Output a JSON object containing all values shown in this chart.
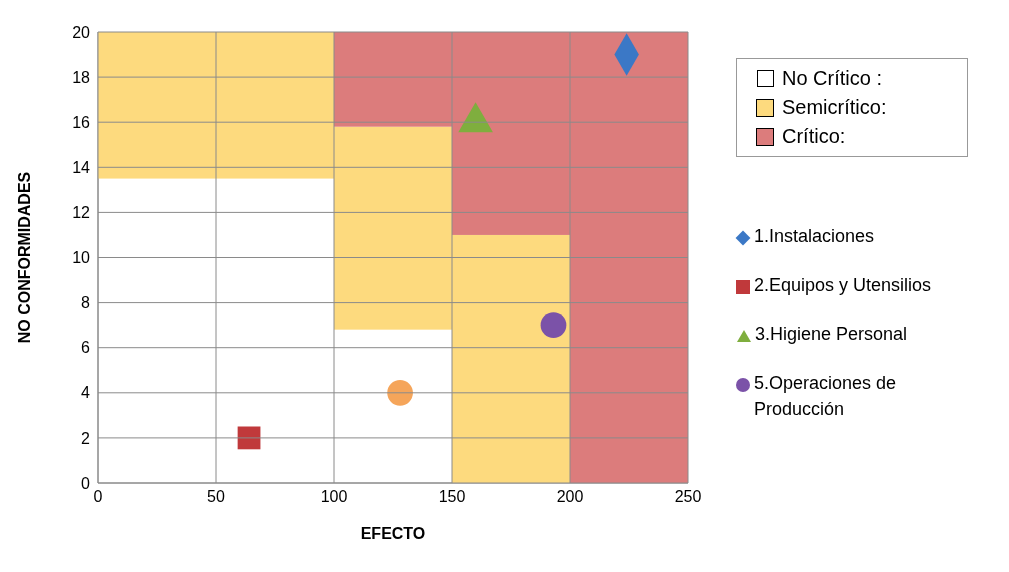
{
  "chart_data": {
    "type": "scatter",
    "xlabel": "EFECTO",
    "ylabel": "NO CONFORMIDADES",
    "xlim": [
      0,
      250
    ],
    "xticks": [
      0,
      50,
      100,
      150,
      200,
      250
    ],
    "ylim": [
      0,
      20
    ],
    "yticks": [
      0,
      2,
      4,
      6,
      8,
      10,
      12,
      14,
      16,
      18,
      20
    ],
    "grid": true,
    "legend": "right",
    "annotations": [
      "No Crítico :"
    ],
    "series": [
      {
        "name": "Semicrítico:",
        "type": "bar",
        "color": "#fdda7e",
        "x": [
          25,
          75,
          125,
          175
        ],
        "base": [
          13.5,
          13.5,
          6.8,
          0
        ],
        "values": [
          6.5,
          6.5,
          9,
          11
        ]
      },
      {
        "name": "Crítico:",
        "type": "bar",
        "color": "#dc7c7c",
        "x": [
          125,
          175,
          225
        ],
        "base": [
          15.8,
          11,
          0
        ],
        "values": [
          4.2,
          9,
          20
        ]
      },
      {
        "name": "1.Instalaciones",
        "marker": "diamond",
        "color": "#3b78c6",
        "x": [
          224
        ],
        "values": [
          19
        ]
      },
      {
        "name": "2.Equipos y Utensilios",
        "marker": "square",
        "color": "#c0393b",
        "x": [
          64
        ],
        "values": [
          2
        ]
      },
      {
        "name": "3.Higiene Personal",
        "marker": "triangle",
        "color": "#7fae3e",
        "x": [
          160
        ],
        "values": [
          16
        ]
      },
      {
        "marker": "circle",
        "color": "#f5a55a",
        "x": [
          128
        ],
        "values": [
          4
        ]
      },
      {
        "name": "5.Operaciones de Producción",
        "marker": "circle",
        "color": "#7b52a8",
        "x": [
          193
        ],
        "values": [
          7
        ]
      }
    ]
  }
}
